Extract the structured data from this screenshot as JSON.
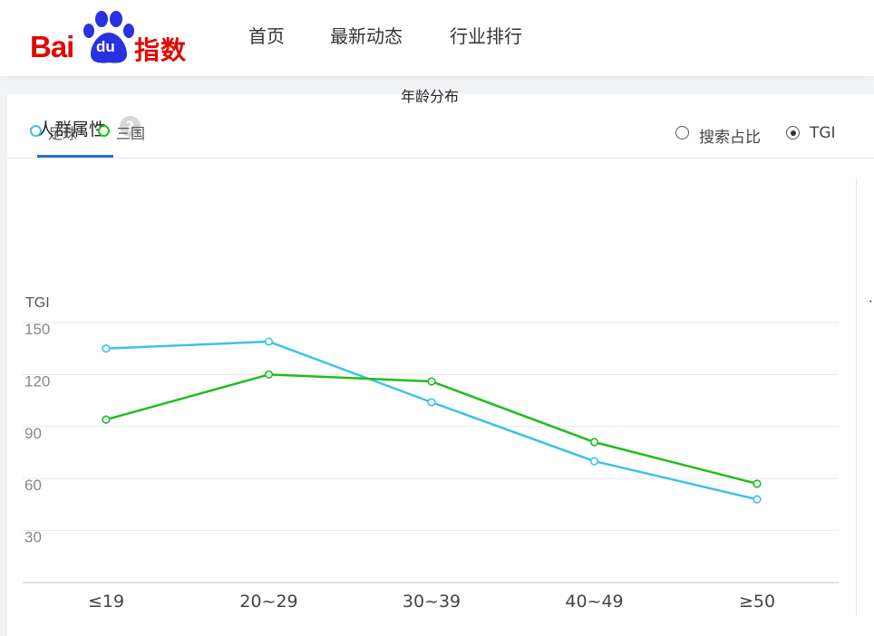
{
  "header": {
    "logo": {
      "text_bai": "Bai",
      "text_du": "du",
      "text_zhishu": "指数"
    },
    "nav": [
      {
        "label": "首页"
      },
      {
        "label": "最新动态"
      },
      {
        "label": "行业排行"
      }
    ]
  },
  "panel": {
    "tab_title": "人群属性",
    "help_icon_glyph": "?"
  },
  "chart_data": {
    "type": "line",
    "title": "年龄分布",
    "ylabel": "TGI",
    "xlabel": "",
    "categories": [
      "≤19",
      "20~29",
      "30~39",
      "40~49",
      "≥50"
    ],
    "yticks": [
      30,
      60,
      90,
      120,
      150
    ],
    "ylim": [
      0,
      150
    ],
    "grid": true,
    "legend_position": "top-left",
    "series": [
      {
        "name": "足球",
        "color": "#3cc3eb",
        "values": [
          135,
          139,
          104,
          70,
          48
        ]
      },
      {
        "name": "三国",
        "color": "#1fbe1f",
        "values": [
          94,
          120,
          116,
          81,
          57
        ]
      }
    ]
  },
  "controls": {
    "options": [
      {
        "label": "搜索占比",
        "selected": false
      },
      {
        "label": "TGI",
        "selected": true
      }
    ]
  },
  "colors": {
    "brand_red": "#e10601",
    "brand_blue": "#2f6ad8",
    "grid": "#e8e8e8"
  }
}
